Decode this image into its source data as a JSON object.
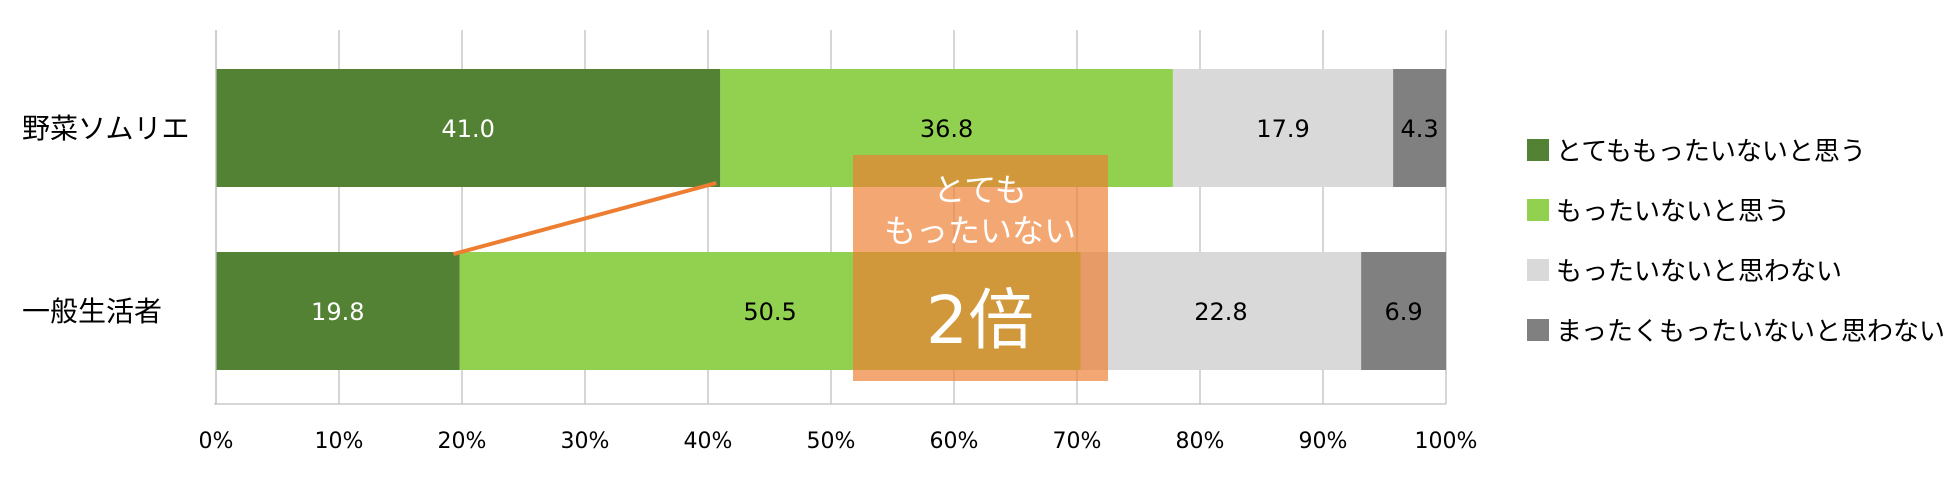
{
  "chart_data": {
    "type": "bar",
    "orientation": "horizontal",
    "stacked": "percent",
    "title": "",
    "xlabel": "",
    "ylabel": "",
    "xlim": [
      0,
      100
    ],
    "grid": true,
    "legend_position": "right",
    "categories": [
      "野菜ソムリエ",
      "一般生活者"
    ],
    "x_ticks": [
      "0%",
      "10%",
      "20%",
      "30%",
      "40%",
      "50%",
      "60%",
      "70%",
      "80%",
      "90%",
      "100%"
    ],
    "series": [
      {
        "name": "とてももったいないと思う",
        "color": "#548235",
        "label_color": "#ffffff",
        "values": [
          41.0,
          19.8
        ],
        "labels": [
          "41.0",
          "19.8"
        ]
      },
      {
        "name": "もったいないと思う",
        "color": "#92d050",
        "label_color": "#000000",
        "values": [
          36.8,
          50.5
        ],
        "labels": [
          "36.8",
          "50.5"
        ]
      },
      {
        "name": "もったいないと思わない",
        "color": "#d9d9d9",
        "label_color": "#000000",
        "values": [
          17.9,
          22.8
        ],
        "labels": [
          "17.9",
          "22.8"
        ]
      },
      {
        "name": "まったくもったいないと思わない",
        "color": "#808080",
        "label_color": "#000000",
        "values": [
          4.3,
          6.9
        ],
        "labels": [
          "4.3",
          "6.9"
        ]
      }
    ],
    "annotation": {
      "line1": "とても",
      "line2": "もったいない",
      "highlight": "2倍",
      "box_color": "#ed7d31",
      "connector_color": "#ed7d31"
    }
  }
}
